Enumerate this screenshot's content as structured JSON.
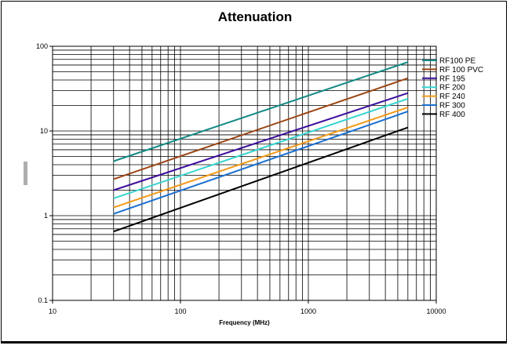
{
  "chart_data": {
    "type": "line",
    "title": "Attenuation",
    "xlabel": "Frequency (MHz)",
    "ylabel": "",
    "x_scale": "log",
    "y_scale": "log",
    "xlim": [
      10,
      10000
    ],
    "ylim": [
      0.1,
      100
    ],
    "x_ticks": [
      "10",
      "100",
      "1000",
      "10000"
    ],
    "y_ticks": [
      "0.1",
      "1",
      "10",
      "100"
    ],
    "grid": true,
    "legend_position": "right",
    "series": [
      {
        "name": "RF100 PE",
        "color": "#138a86",
        "x": [
          30,
          6000
        ],
        "y": [
          4.4,
          65
        ]
      },
      {
        "name": "RF 100 PVC",
        "color": "#9b4513",
        "x": [
          30,
          6000
        ],
        "y": [
          2.7,
          42
        ]
      },
      {
        "name": "RF 195",
        "color": "#3c0f9c",
        "x": [
          30,
          6000
        ],
        "y": [
          2.0,
          28
        ]
      },
      {
        "name": "RF 200",
        "color": "#36d5d0",
        "x": [
          30,
          6000
        ],
        "y": [
          1.6,
          24
        ]
      },
      {
        "name": "RF 240",
        "color": "#f29a1a",
        "x": [
          30,
          6000
        ],
        "y": [
          1.25,
          19
        ]
      },
      {
        "name": "RF 300",
        "color": "#1a6fd0",
        "x": [
          30,
          6000
        ],
        "y": [
          1.05,
          17
        ]
      },
      {
        "name": "RF 400",
        "color": "#000000",
        "x": [
          30,
          6000
        ],
        "y": [
          0.65,
          11
        ]
      }
    ]
  }
}
